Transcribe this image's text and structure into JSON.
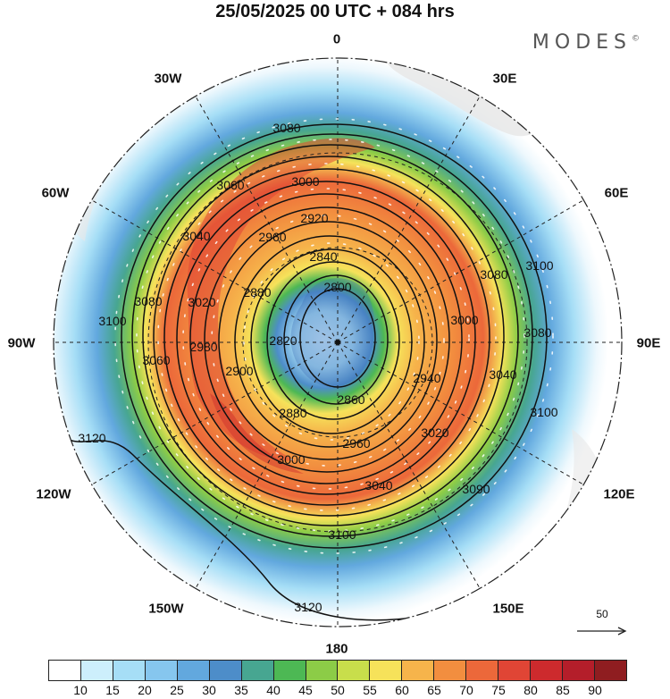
{
  "title": "25/05/2025  00 UTC  + 084 hrs",
  "brand": "MODES",
  "brand_mark": "©",
  "longitude_labels": {
    "lon_0": "0",
    "lon_30e": "30E",
    "lon_60e": "60E",
    "lon_90e": "90E",
    "lon_120e": "120E",
    "lon_150e": "150E",
    "lon_180": "180",
    "lon_150w": "150W",
    "lon_120w": "120W",
    "lon_90w": "90W",
    "lon_60w": "60W",
    "lon_30w": "30W"
  },
  "contour_labels": [
    "2800",
    "2820",
    "2840",
    "2860",
    "2880",
    "2900",
    "2920",
    "2940",
    "2960",
    "2980",
    "3000",
    "3020",
    "3040",
    "3060",
    "3080",
    "3090",
    "3100",
    "3120"
  ],
  "reference_vector": {
    "label": "50"
  },
  "colorbar": {
    "colors": [
      "#ffffff",
      "#cdeffc",
      "#a6def6",
      "#86c6ee",
      "#62a8de",
      "#4d8dc9",
      "#47a691",
      "#4db854",
      "#8ccc47",
      "#c8de4b",
      "#f6e25a",
      "#f6b44b",
      "#f28e3f",
      "#ec683a",
      "#e04535",
      "#cd2a2d",
      "#b41e2a",
      "#8f1d20"
    ],
    "labels": [
      "10",
      "15",
      "20",
      "25",
      "30",
      "35",
      "40",
      "45",
      "50",
      "55",
      "60",
      "65",
      "70",
      "75",
      "80",
      "85",
      "90"
    ]
  },
  "map_colors": {
    "land": "#e7e7e7",
    "graticule": "#222222",
    "contour": "#111111",
    "wind_arrow": "#ffffff"
  }
}
